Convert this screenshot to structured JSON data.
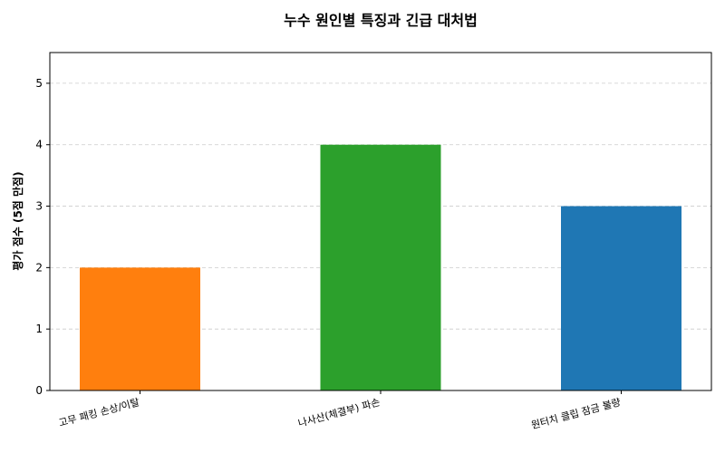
{
  "chart_data": {
    "type": "bar",
    "title": "누수 원인별 특징과 긴급 대처법",
    "xlabel": "",
    "ylabel": "평가 점수 (5점 만점)",
    "categories": [
      "고무 패킹 손상/이탈",
      "나사산(체결부) 파손",
      "원터치 클립 잠금 불량"
    ],
    "values": [
      2,
      4,
      3
    ],
    "colors": [
      "#ff7f0e",
      "#2ca02c",
      "#1f77b4"
    ],
    "ylim": [
      0,
      5.5
    ],
    "yticks": [
      0,
      1,
      2,
      3,
      4,
      5
    ],
    "grid": true,
    "grid_axis": "y",
    "legend": false
  }
}
